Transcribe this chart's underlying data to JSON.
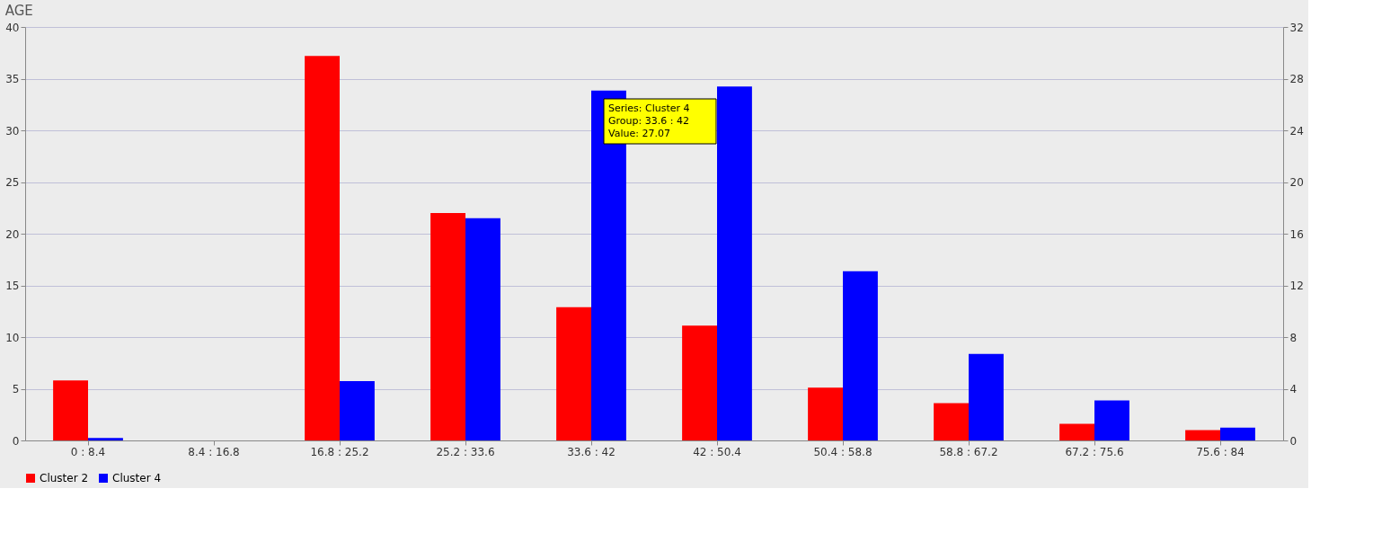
{
  "chart_data": {
    "type": "bar",
    "title": "AGE",
    "categories": [
      "0 : 8.4",
      "8.4 : 16.8",
      "16.8 : 25.2",
      "25.2 : 33.6",
      "33.6 : 42",
      "42 : 50.4",
      "50.4 : 58.8",
      "58.8 : 67.2",
      "67.2 : 75.6",
      "75.6 : 84"
    ],
    "series": [
      {
        "name": "Cluster 2",
        "color": "#ff0000",
        "values": [
          5.8,
          0,
          37.2,
          22.0,
          12.9,
          11.1,
          5.1,
          3.6,
          1.6,
          1.0
        ]
      },
      {
        "name": "Cluster 4",
        "color": "#0000ff",
        "axis": "y2",
        "values": [
          0.2,
          0,
          4.6,
          17.2,
          27.07,
          27.4,
          13.1,
          6.7,
          3.1,
          1.0
        ]
      }
    ],
    "ylim": [
      0,
      40
    ],
    "yticks": [
      0,
      5,
      10,
      15,
      20,
      25,
      30,
      35,
      40
    ],
    "y2lim": [
      0,
      32
    ],
    "y2ticks": [
      0,
      4,
      8,
      12,
      16,
      20,
      24,
      28,
      32
    ],
    "grid": "y",
    "legend": "bottom",
    "annotations": [
      "Series: Cluster 4\nGroup: 33.6 : 42\nValue: 27.07"
    ]
  }
}
